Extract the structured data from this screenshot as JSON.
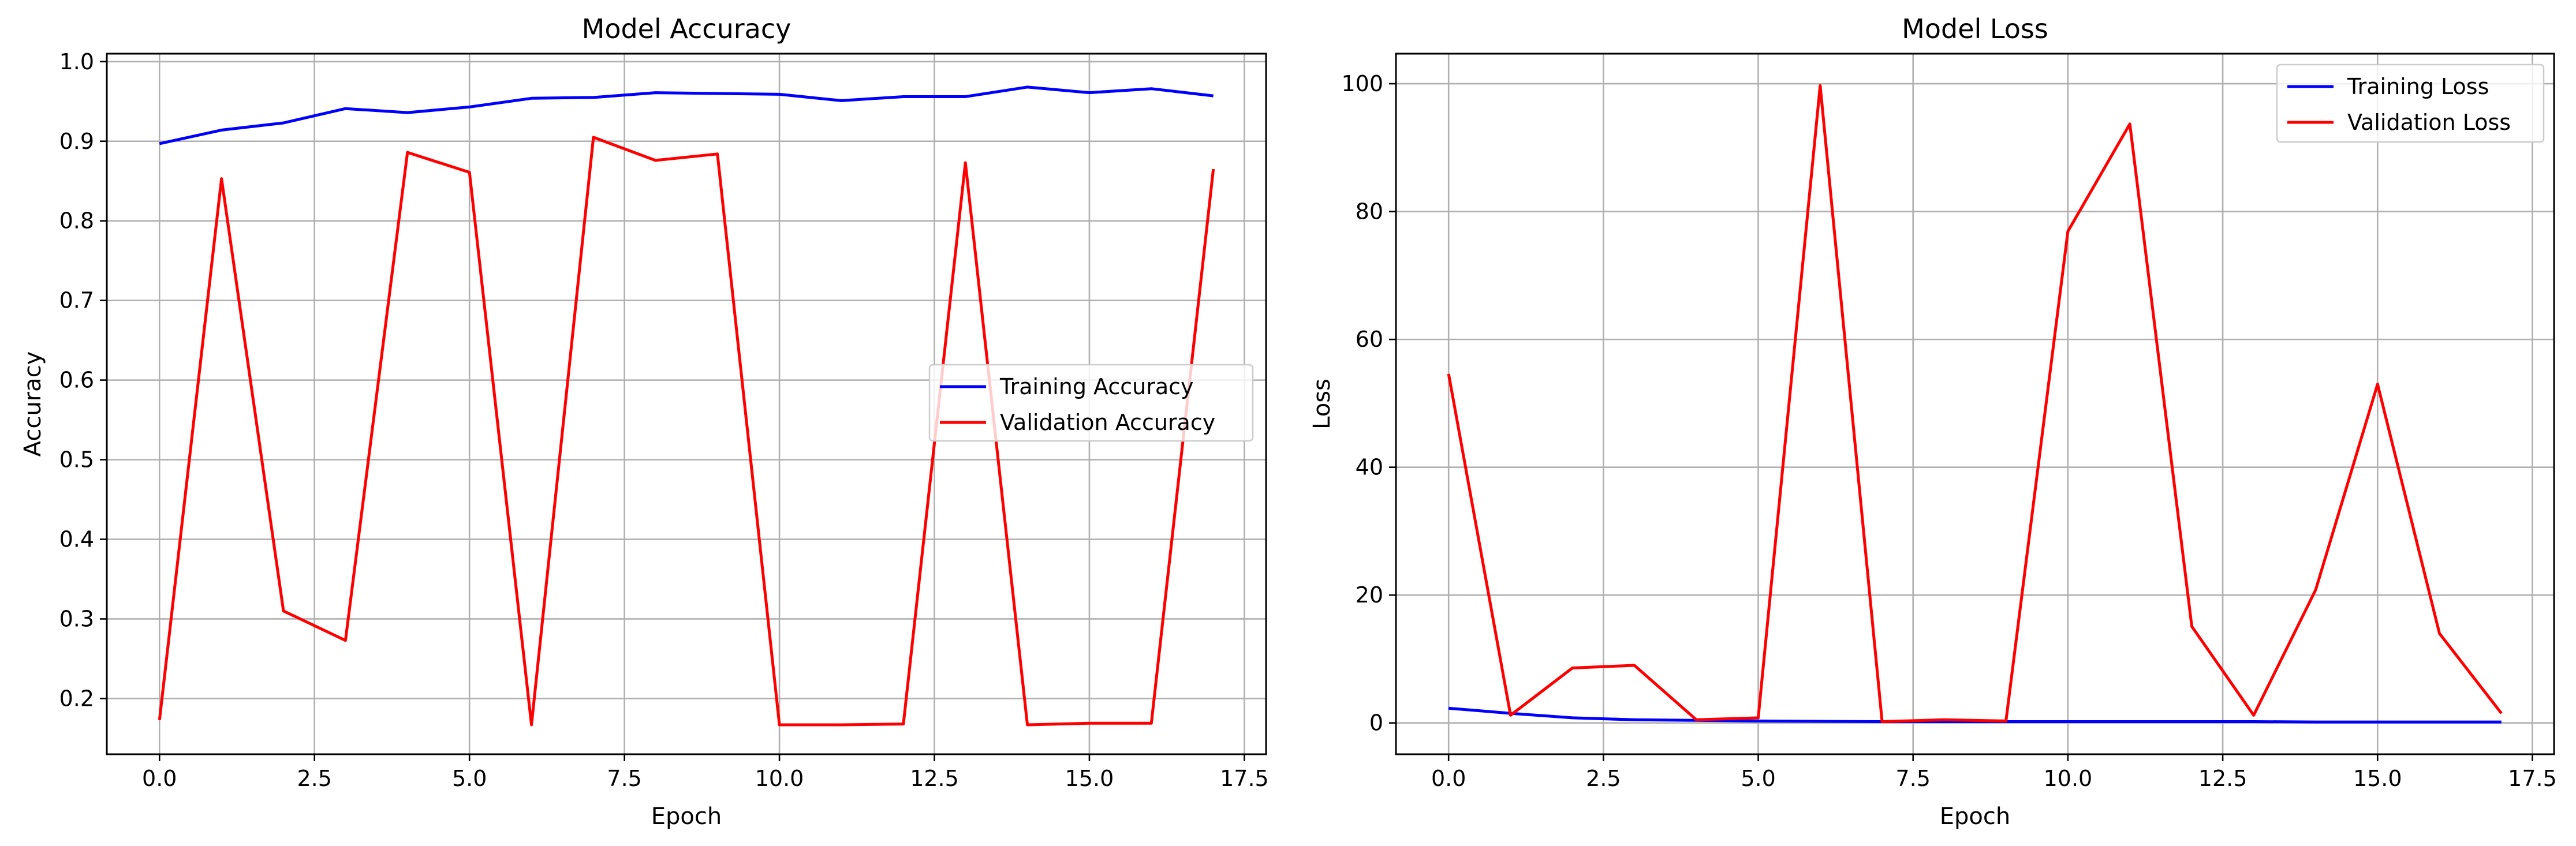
{
  "chart_data": [
    {
      "type": "line",
      "title": "Model Accuracy",
      "xlabel": "Epoch",
      "ylabel": "Accuracy",
      "xlim": [
        -0.85,
        17.85
      ],
      "ylim": [
        0.13,
        1.01
      ],
      "xticks": [
        0.0,
        2.5,
        5.0,
        7.5,
        10.0,
        12.5,
        15.0,
        17.5
      ],
      "xtick_labels": [
        "0.0",
        "2.5",
        "5.0",
        "7.5",
        "10.0",
        "12.5",
        "15.0",
        "17.5"
      ],
      "yticks": [
        0.2,
        0.3,
        0.4,
        0.5,
        0.6,
        0.7,
        0.8,
        0.9,
        1.0
      ],
      "ytick_labels": [
        "0.2",
        "0.3",
        "0.4",
        "0.5",
        "0.6",
        "0.7",
        "0.8",
        "0.9",
        "1.0"
      ],
      "grid": true,
      "legend_position": "center-right",
      "x": [
        0,
        1,
        2,
        3,
        4,
        5,
        6,
        7,
        8,
        9,
        10,
        11,
        12,
        13,
        14,
        15,
        16,
        17
      ],
      "series": [
        {
          "name": "Training Accuracy",
          "color": "#0000ff",
          "values": [
            0.897,
            0.914,
            0.923,
            0.941,
            0.936,
            0.943,
            0.954,
            0.955,
            0.961,
            0.96,
            0.959,
            0.951,
            0.956,
            0.956,
            0.968,
            0.961,
            0.966,
            0.957
          ]
        },
        {
          "name": "Validation Accuracy",
          "color": "#ff0000",
          "values": [
            0.173,
            0.853,
            0.31,
            0.273,
            0.886,
            0.861,
            0.167,
            0.905,
            0.876,
            0.884,
            0.167,
            0.167,
            0.168,
            0.873,
            0.167,
            0.169,
            0.169,
            0.865
          ]
        }
      ]
    },
    {
      "type": "line",
      "title": "Model Loss",
      "xlabel": "Epoch",
      "ylabel": "Loss",
      "xlim": [
        -0.85,
        17.85
      ],
      "ylim": [
        -4.9,
        104.7
      ],
      "xticks": [
        0.0,
        2.5,
        5.0,
        7.5,
        10.0,
        12.5,
        15.0,
        17.5
      ],
      "xtick_labels": [
        "0.0",
        "2.5",
        "5.0",
        "7.5",
        "10.0",
        "12.5",
        "15.0",
        "17.5"
      ],
      "yticks": [
        0,
        20,
        40,
        60,
        80,
        100
      ],
      "ytick_labels": [
        "0",
        "20",
        "40",
        "60",
        "80",
        "100"
      ],
      "grid": true,
      "legend_position": "top-right",
      "x": [
        0,
        1,
        2,
        3,
        4,
        5,
        6,
        7,
        8,
        9,
        10,
        11,
        12,
        13,
        14,
        15,
        16,
        17
      ],
      "series": [
        {
          "name": "Training Loss",
          "color": "#0000ff",
          "values": [
            2.3,
            1.5,
            0.8,
            0.5,
            0.4,
            0.3,
            0.25,
            0.2,
            0.2,
            0.2,
            0.2,
            0.2,
            0.2,
            0.2,
            0.15,
            0.15,
            0.15,
            0.15
          ]
        },
        {
          "name": "Validation Loss",
          "color": "#ff0000",
          "values": [
            54.6,
            1.2,
            8.6,
            9.0,
            0.5,
            0.8,
            99.7,
            0.2,
            0.5,
            0.3,
            76.9,
            93.7,
            15.1,
            1.2,
            20.8,
            53.0,
            14.0,
            1.5
          ]
        }
      ]
    }
  ]
}
